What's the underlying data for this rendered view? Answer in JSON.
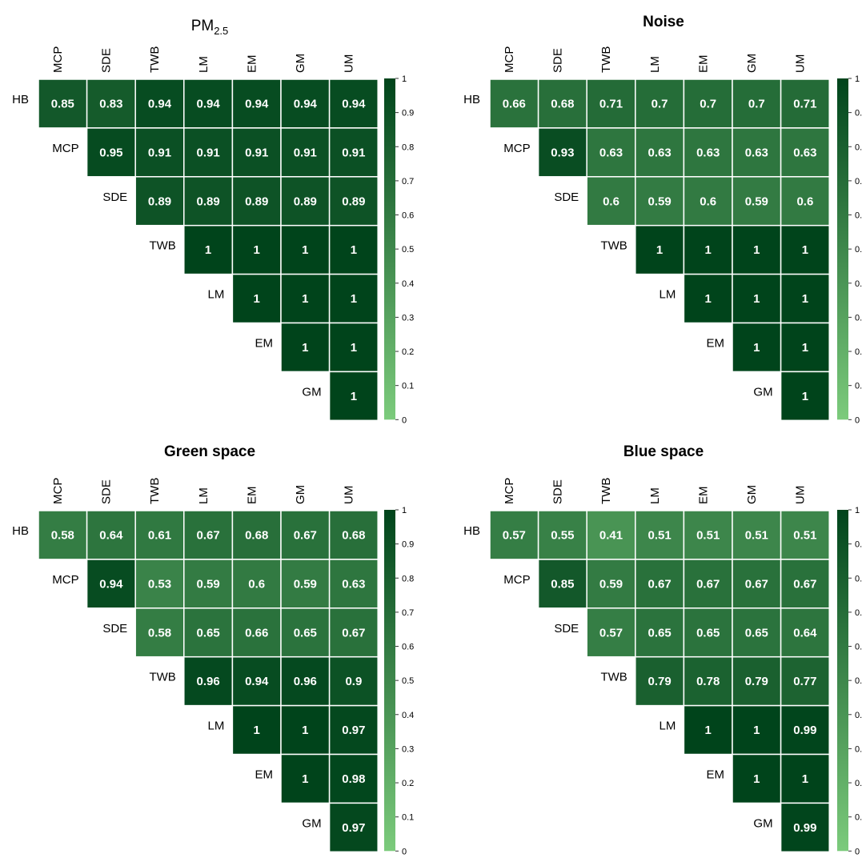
{
  "colors": {
    "scale_low": "#7ccb7c",
    "scale_high": "#00441b",
    "cell_border": "#ffffff",
    "cell_text": "#ffffff"
  },
  "chart_data": [
    {
      "type": "heatmap",
      "title": "PM",
      "title_subscript": "2.5",
      "columns": [
        "MCP",
        "SDE",
        "TWB",
        "LM",
        "EM",
        "GM",
        "UM"
      ],
      "rows": [
        "HB",
        "MCP",
        "SDE",
        "TWB",
        "LM",
        "EM",
        "GM"
      ],
      "values": [
        [
          0.85,
          0.83,
          0.94,
          0.94,
          0.94,
          0.94,
          0.94
        ],
        [
          null,
          0.95,
          0.91,
          0.91,
          0.91,
          0.91,
          0.91
        ],
        [
          null,
          null,
          0.89,
          0.89,
          0.89,
          0.89,
          0.89
        ],
        [
          null,
          null,
          null,
          1,
          1,
          1,
          1
        ],
        [
          null,
          null,
          null,
          null,
          1,
          1,
          1
        ],
        [
          null,
          null,
          null,
          null,
          null,
          1,
          1
        ],
        [
          null,
          null,
          null,
          null,
          null,
          null,
          1
        ]
      ],
      "colorbar": {
        "range": [
          0,
          1
        ],
        "ticks": [
          "0",
          "0.1",
          "0.2",
          "0.3",
          "0.4",
          "0.5",
          "0.6",
          "0.7",
          "0.8",
          "0.9",
          "1"
        ]
      }
    },
    {
      "type": "heatmap",
      "title": "Noise",
      "columns": [
        "MCP",
        "SDE",
        "TWB",
        "LM",
        "EM",
        "GM",
        "UM"
      ],
      "rows": [
        "HB",
        "MCP",
        "SDE",
        "TWB",
        "LM",
        "EM",
        "GM"
      ],
      "values": [
        [
          0.66,
          0.68,
          0.71,
          0.7,
          0.7,
          0.7,
          0.71
        ],
        [
          null,
          0.93,
          0.63,
          0.63,
          0.63,
          0.63,
          0.63
        ],
        [
          null,
          null,
          0.6,
          0.59,
          0.6,
          0.59,
          0.6
        ],
        [
          null,
          null,
          null,
          1,
          1,
          1,
          1
        ],
        [
          null,
          null,
          null,
          null,
          1,
          1,
          1
        ],
        [
          null,
          null,
          null,
          null,
          null,
          1,
          1
        ],
        [
          null,
          null,
          null,
          null,
          null,
          null,
          1
        ]
      ],
      "colorbar": {
        "range": [
          0,
          1
        ],
        "ticks": [
          "0",
          "0.",
          "0.",
          "0.",
          "0.",
          "0.",
          "0.",
          "0.",
          "0.",
          "0.",
          "1"
        ]
      }
    },
    {
      "type": "heatmap",
      "title": "Green space",
      "columns": [
        "MCP",
        "SDE",
        "TWB",
        "LM",
        "EM",
        "GM",
        "UM"
      ],
      "rows": [
        "HB",
        "MCP",
        "SDE",
        "TWB",
        "LM",
        "EM",
        "GM"
      ],
      "values": [
        [
          0.58,
          0.64,
          0.61,
          0.67,
          0.68,
          0.67,
          0.68
        ],
        [
          null,
          0.94,
          0.53,
          0.59,
          0.6,
          0.59,
          0.63
        ],
        [
          null,
          null,
          0.58,
          0.65,
          0.66,
          0.65,
          0.67
        ],
        [
          null,
          null,
          null,
          0.96,
          0.94,
          0.96,
          0.9
        ],
        [
          null,
          null,
          null,
          null,
          1,
          1,
          0.97
        ],
        [
          null,
          null,
          null,
          null,
          null,
          1,
          0.98
        ],
        [
          null,
          null,
          null,
          null,
          null,
          null,
          0.97
        ]
      ],
      "colorbar": {
        "range": [
          0,
          1
        ],
        "ticks": [
          "0",
          "0.1",
          "0.2",
          "0.3",
          "0.4",
          "0.5",
          "0.6",
          "0.7",
          "0.8",
          "0.9",
          "1"
        ]
      }
    },
    {
      "type": "heatmap",
      "title": "Blue space",
      "columns": [
        "MCP",
        "SDE",
        "TWB",
        "LM",
        "EM",
        "GM",
        "UM"
      ],
      "rows": [
        "HB",
        "MCP",
        "SDE",
        "TWB",
        "LM",
        "EM",
        "GM"
      ],
      "values": [
        [
          0.57,
          0.55,
          0.41,
          0.51,
          0.51,
          0.51,
          0.51
        ],
        [
          null,
          0.85,
          0.59,
          0.67,
          0.67,
          0.67,
          0.67
        ],
        [
          null,
          null,
          0.57,
          0.65,
          0.65,
          0.65,
          0.64
        ],
        [
          null,
          null,
          null,
          0.79,
          0.78,
          0.79,
          0.77
        ],
        [
          null,
          null,
          null,
          null,
          1,
          1,
          0.99
        ],
        [
          null,
          null,
          null,
          null,
          null,
          1,
          1
        ],
        [
          null,
          null,
          null,
          null,
          null,
          null,
          0.99
        ]
      ],
      "colorbar": {
        "range": [
          0,
          1
        ],
        "ticks": [
          "0",
          "0.",
          "0.",
          "0.",
          "0.",
          "0.",
          "0.",
          "0.",
          "0.",
          "0.",
          "1"
        ]
      }
    }
  ]
}
